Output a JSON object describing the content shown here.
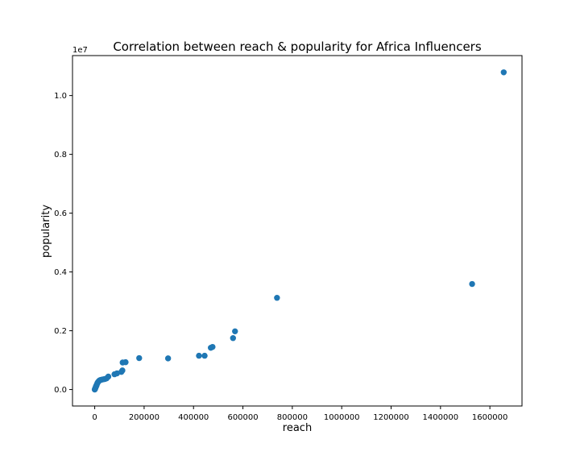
{
  "chart_data": {
    "type": "scatter",
    "title": "Correlation between reach & popularity for Africa Influencers",
    "xlabel": "reach",
    "ylabel": "popularity",
    "y_offset_label": "1e7",
    "xlim": [
      -90000,
      1730000
    ],
    "ylim": [
      -0.056,
      1.136
    ],
    "xticks": [
      0,
      200000,
      400000,
      600000,
      800000,
      1000000,
      1200000,
      1400000,
      1600000
    ],
    "xtick_labels": [
      "0",
      "200000",
      "400000",
      "600000",
      "800000",
      "1000000",
      "1200000",
      "1400000",
      "1600000"
    ],
    "yticks": [
      0.0,
      0.2,
      0.4,
      0.6,
      0.8,
      1.0
    ],
    "ytick_labels": [
      "0.0",
      "0.2",
      "0.4",
      "0.6",
      "0.8",
      "1.0"
    ],
    "grid": false,
    "marker_color": "#1f77b4",
    "series": [
      {
        "points": [
          [
            0,
            0.0
          ],
          [
            1000,
            0.002
          ],
          [
            2000,
            0.004
          ],
          [
            3000,
            0.006
          ],
          [
            4000,
            0.008
          ],
          [
            5000,
            0.01
          ],
          [
            6000,
            0.012
          ],
          [
            7000,
            0.014
          ],
          [
            8000,
            0.016
          ],
          [
            10000,
            0.02
          ],
          [
            12000,
            0.024
          ],
          [
            15000,
            0.027
          ],
          [
            18000,
            0.03
          ],
          [
            22000,
            0.032
          ],
          [
            26000,
            0.033
          ],
          [
            30000,
            0.034
          ],
          [
            36000,
            0.035
          ],
          [
            42000,
            0.036
          ],
          [
            48000,
            0.038
          ],
          [
            55000,
            0.044
          ],
          [
            80000,
            0.052
          ],
          [
            90000,
            0.055
          ],
          [
            108000,
            0.06
          ],
          [
            112000,
            0.065
          ],
          [
            113000,
            0.092
          ],
          [
            125000,
            0.093
          ],
          [
            180000,
            0.107
          ],
          [
            297000,
            0.106
          ],
          [
            422000,
            0.115
          ],
          [
            445000,
            0.115
          ],
          [
            470000,
            0.142
          ],
          [
            477000,
            0.145
          ],
          [
            560000,
            0.175
          ],
          [
            568000,
            0.198
          ],
          [
            738000,
            0.312
          ],
          [
            1528000,
            0.359
          ],
          [
            1656000,
            1.079
          ]
        ]
      }
    ]
  }
}
